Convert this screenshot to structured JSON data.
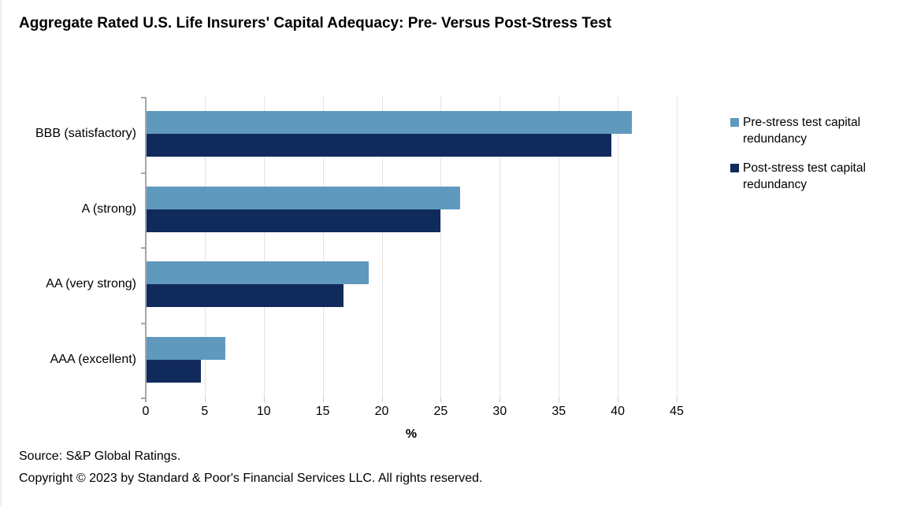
{
  "title": "Aggregate Rated U.S. Life Insurers' Capital Adequacy: Pre- Versus Post-Stress Test",
  "chart_data": {
    "type": "bar",
    "orientation": "horizontal",
    "title": "Aggregate Rated U.S. Life Insurers' Capital Adequacy: Pre- Versus Post-Stress Test",
    "categories": [
      "BBB (satisfactory)",
      "A (strong)",
      "AA (very strong)",
      "AAA (excellent)"
    ],
    "series": [
      {
        "name": "Pre-stress test capital redundancy",
        "key": "pre-stress",
        "color": "#5F99BE",
        "values": [
          41.1,
          26.6,
          18.8,
          6.7
        ]
      },
      {
        "name": "Post-stress test capital redundancy",
        "key": "post-stress",
        "color": "#112A5C",
        "values": [
          39.4,
          24.9,
          16.7,
          4.6
        ]
      }
    ],
    "xlabel": "%",
    "ylabel": "",
    "xlim": [
      0,
      45
    ],
    "xticks": [
      0,
      5,
      10,
      15,
      20,
      25,
      30,
      35,
      40,
      45
    ],
    "grid": true,
    "legend_position": "right"
  },
  "footer": {
    "source": "Source: S&P Global Ratings.",
    "copyright": "Copyright © 2023 by Standard & Poor's Financial Services LLC. All rights reserved."
  },
  "colors": {
    "pre_stress": "#5F99BE",
    "post_stress": "#112A5C",
    "gridline": "#E3E3E3",
    "axis": "#A6A6A6",
    "text": "#000000",
    "background": "#FFFFFF"
  }
}
